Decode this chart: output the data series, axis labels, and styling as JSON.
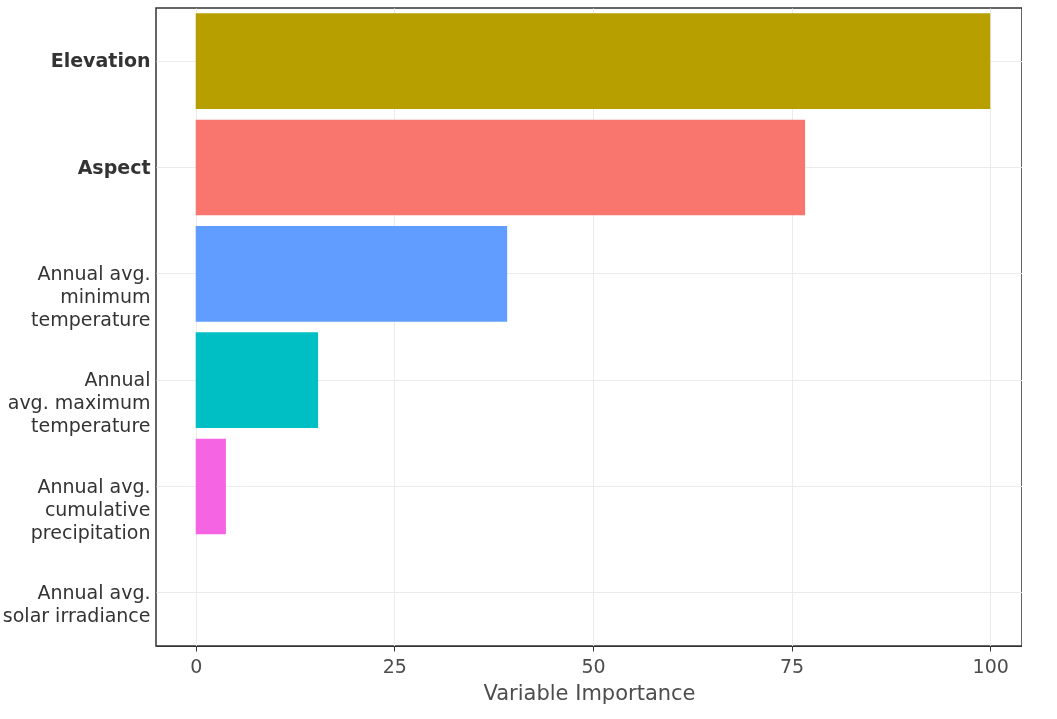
{
  "chart_data": {
    "type": "bar",
    "orientation": "horizontal",
    "xlabel": "Variable Importance",
    "categories": [
      "Elevation",
      "Aspect",
      "Annual avg.\nminimum\ntemperature",
      "Annual\navg. maximum\ntemperature",
      "Annual avg.\ncumulative\nprecipitation",
      "Annual avg.\nsolar irradiance"
    ],
    "values": [
      100,
      76.7,
      39.2,
      15.4,
      3.8,
      0
    ],
    "colors": [
      "#b79f00",
      "#f8766d",
      "#619cff",
      "#00bfc4",
      "#f564e3",
      "#00ba38"
    ],
    "xlim": [
      -5,
      104
    ],
    "xticks": [
      0,
      25,
      50,
      75,
      100
    ],
    "grid": true,
    "legend": false
  }
}
